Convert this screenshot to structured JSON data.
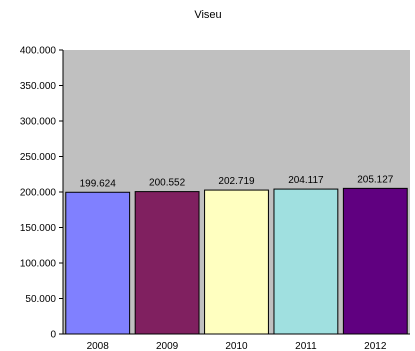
{
  "chart_data": {
    "type": "bar",
    "title": "Viseu",
    "categories": [
      "2008",
      "2009",
      "2010",
      "2011",
      "2012"
    ],
    "values": [
      199624,
      200552,
      202719,
      204117,
      205127
    ],
    "value_labels": [
      "199.624",
      "200.552",
      "202.719",
      "204.117",
      "205.127"
    ],
    "ylim": [
      0,
      400000
    ],
    "yticks": [
      0,
      50000,
      100000,
      150000,
      200000,
      250000,
      300000,
      350000,
      400000
    ],
    "ytick_labels": [
      "0",
      "50.000",
      "100.000",
      "150.000",
      "200.000",
      "250.000",
      "300.000",
      "350.000",
      "400.000"
    ],
    "xlabel": "",
    "ylabel": "",
    "grid": false,
    "legend": "none",
    "plot_background": "#c0c0c0",
    "bar_colors": [
      "#8080ff",
      "#802060",
      "#ffffc0",
      "#a0e0e0",
      "#600080"
    ]
  }
}
